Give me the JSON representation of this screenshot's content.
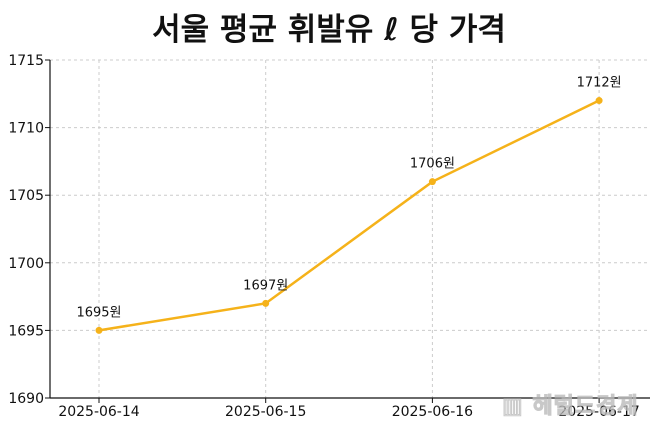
{
  "chart_data": {
    "type": "line",
    "title": "서울 평균 휘발유 ℓ 당 가격",
    "xlabel": "",
    "ylabel": "",
    "categories": [
      "2025-06-14",
      "2025-06-15",
      "2025-06-16",
      "2025-06-17"
    ],
    "values": [
      1695,
      1697,
      1706,
      1712
    ],
    "data_labels": [
      "1695원",
      "1697원",
      "1706원",
      "1712원"
    ],
    "ylim": [
      1690,
      1715
    ],
    "yticks": [
      1690,
      1695,
      1700,
      1705,
      1710,
      1715
    ],
    "grid": true,
    "line_color": "#f5b21a"
  },
  "watermark": "헤럴드경제"
}
